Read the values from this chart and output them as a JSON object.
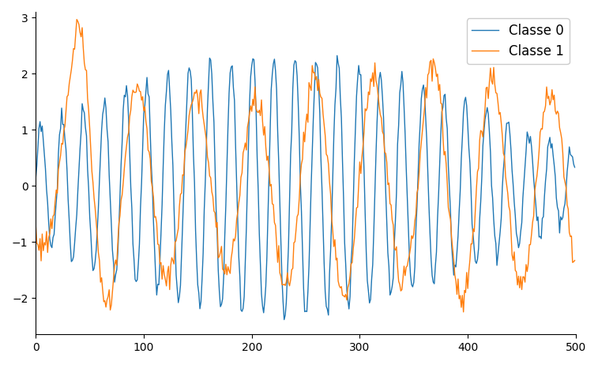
{
  "n_points": 500,
  "class0_color": "#1f77b4",
  "class1_color": "#ff7f0e",
  "class0_label": "Classe 0",
  "class1_label": "Classe 1",
  "xlim": [
    0,
    500
  ],
  "ylim": [
    -2.65,
    3.1
  ],
  "legend_fontsize": 12,
  "figsize": [
    7.57,
    4.62
  ],
  "dpi": 100
}
